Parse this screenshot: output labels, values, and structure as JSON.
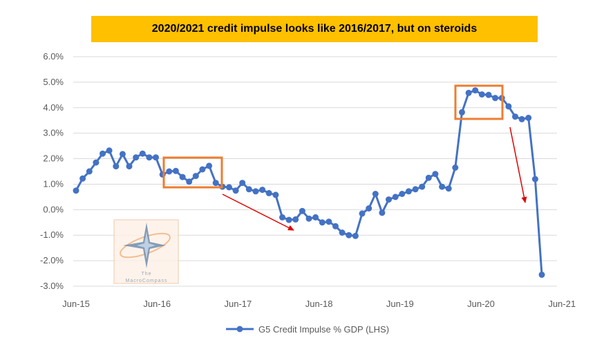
{
  "chart_data": {
    "type": "line",
    "title": "2020/2021 credit impulse looks like 2016/2017, but on steroids",
    "xlabel": "",
    "ylabel": "",
    "y_ticks": [
      "6.0%",
      "5.0%",
      "4.0%",
      "3.0%",
      "2.0%",
      "1.0%",
      "0.0%",
      "-1.0%",
      "-2.0%",
      "-3.0%"
    ],
    "x_ticks": [
      "Jun-15",
      "Jun-16",
      "Jun-17",
      "Jun-18",
      "Jun-19",
      "Jun-20",
      "Jun-21"
    ],
    "ylim": [
      -3.0,
      6.0
    ],
    "grid": true,
    "legend_position": "bottom",
    "series_color": "#4472C4",
    "highlight_color": "#ED7D31",
    "arrow_color": "#E00000",
    "series": [
      {
        "name": "G5 Credit Impulse % GDP (LHS)",
        "values": [
          0.75,
          1.22,
          1.5,
          1.85,
          2.2,
          2.32,
          1.7,
          2.18,
          1.7,
          2.05,
          2.2,
          2.05,
          2.05,
          1.38,
          1.5,
          1.52,
          1.28,
          1.1,
          1.32,
          1.58,
          1.72,
          1.05,
          0.9,
          0.88,
          0.75,
          1.05,
          0.8,
          0.72,
          0.78,
          0.65,
          0.58,
          -0.3,
          -0.4,
          -0.38,
          -0.05,
          -0.35,
          -0.3,
          -0.5,
          -0.47,
          -0.65,
          -0.9,
          -1.0,
          -1.03,
          -0.15,
          0.05,
          0.62,
          -0.12,
          0.4,
          0.5,
          0.62,
          0.72,
          0.8,
          0.9,
          1.25,
          1.4,
          0.9,
          0.83,
          1.65,
          3.82,
          4.58,
          4.68,
          4.52,
          4.5,
          4.38,
          4.38,
          4.05,
          3.65,
          3.55,
          3.6,
          1.2,
          -2.55
        ]
      }
    ]
  },
  "watermark": {
    "lines": [
      "The",
      "MacroCompass"
    ]
  }
}
